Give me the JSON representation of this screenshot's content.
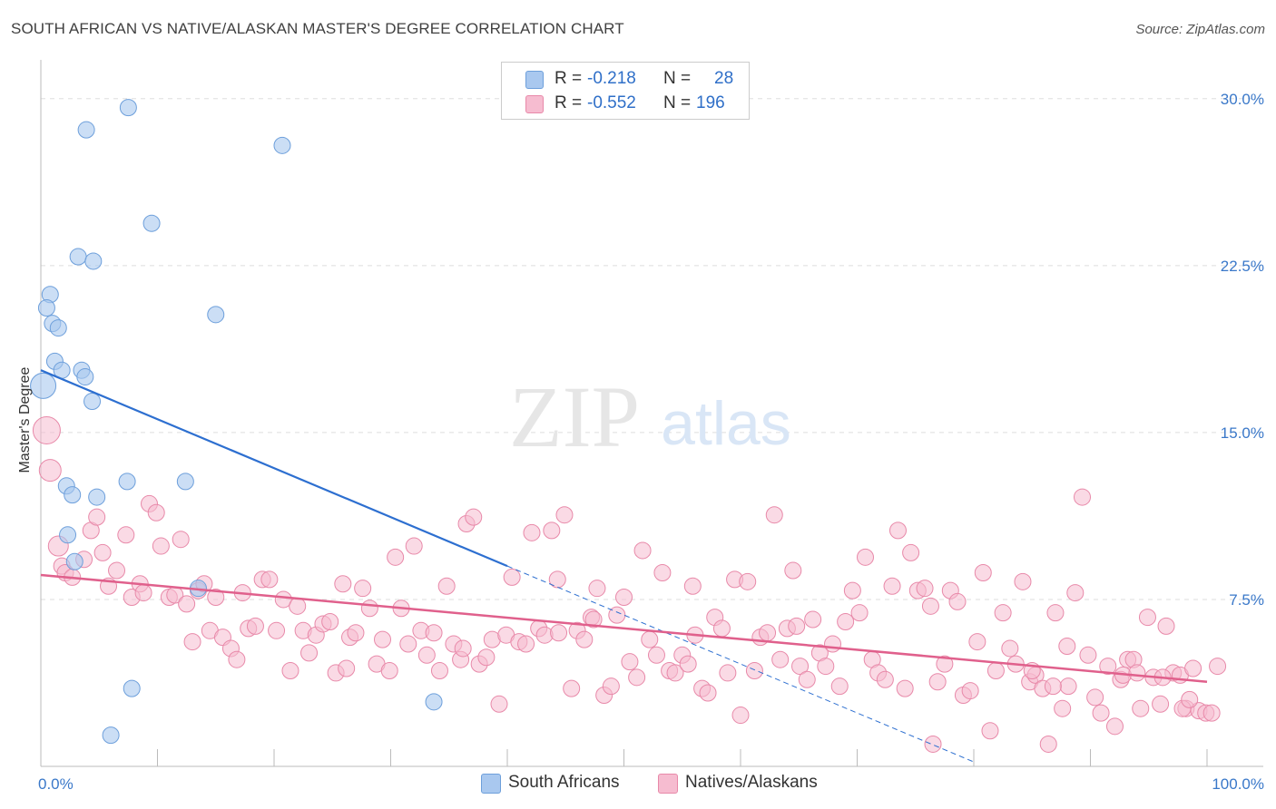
{
  "title": "SOUTH AFRICAN VS NATIVE/ALASKAN MASTER'S DEGREE CORRELATION CHART",
  "source": "Source: ZipAtlas.com",
  "watermark": {
    "zip": "ZIP",
    "atlas": "atlas"
  },
  "colors": {
    "blue_fill": "#a9c8ef",
    "blue_stroke": "#6d9fdb",
    "blue_line": "#2d6fd0",
    "pink_fill": "#f6bcd0",
    "pink_stroke": "#e889a9",
    "pink_line": "#e0608c",
    "grid": "#dddddd",
    "tick_text": "#3a78c9"
  },
  "legend": {
    "rows": [
      {
        "r_label": "R =",
        "r_value": "-0.218",
        "n_label": "N =",
        "n_value": "28"
      },
      {
        "r_label": "R =",
        "r_value": "-0.552",
        "n_label": "N =",
        "n_value": "196"
      }
    ]
  },
  "bottom_legend": {
    "items": [
      "South Africans",
      "Natives/Alaskans"
    ]
  },
  "chart_data": {
    "type": "scatter",
    "ylabel": "Master's Degree",
    "x_tick_labels": [
      "0.0%",
      "100.0%"
    ],
    "y_tick_labels": [
      "7.5%",
      "15.0%",
      "22.5%",
      "30.0%"
    ],
    "y_ticks": [
      7.5,
      15.0,
      22.5,
      30.0
    ],
    "xlim": [
      0,
      100
    ],
    "ylim": [
      0,
      31.5
    ],
    "grid": true,
    "series": [
      {
        "name": "South Africans",
        "trend": {
          "x0": 0,
          "y0": 17.8,
          "x1": 40,
          "y1": 9.0,
          "x_dash_end": 80,
          "y_dash_end": 0.2
        },
        "points": [
          [
            7.5,
            29.6,
            9
          ],
          [
            3.9,
            28.6,
            9
          ],
          [
            20.7,
            27.9,
            9
          ],
          [
            9.5,
            24.4,
            9
          ],
          [
            3.2,
            22.9,
            9
          ],
          [
            4.5,
            22.7,
            9
          ],
          [
            0.8,
            21.2,
            9
          ],
          [
            0.5,
            20.6,
            9
          ],
          [
            15.0,
            20.3,
            9
          ],
          [
            1.0,
            19.9,
            9
          ],
          [
            1.5,
            19.7,
            9
          ],
          [
            1.2,
            18.2,
            9
          ],
          [
            1.8,
            17.8,
            9
          ],
          [
            3.5,
            17.8,
            9
          ],
          [
            3.8,
            17.5,
            9
          ],
          [
            0.2,
            17.1,
            14
          ],
          [
            4.4,
            16.4,
            9
          ],
          [
            7.4,
            12.8,
            9
          ],
          [
            12.4,
            12.8,
            9
          ],
          [
            2.2,
            12.6,
            9
          ],
          [
            2.7,
            12.2,
            9
          ],
          [
            4.8,
            12.1,
            9
          ],
          [
            2.3,
            10.4,
            9
          ],
          [
            2.9,
            9.2,
            9
          ],
          [
            13.5,
            8.0,
            9
          ],
          [
            7.8,
            3.5,
            9
          ],
          [
            33.7,
            2.9,
            9
          ],
          [
            6.0,
            1.4,
            9
          ]
        ]
      },
      {
        "name": "Natives/Alaskans",
        "trend": {
          "x0": 0,
          "y0": 8.6,
          "x1": 100,
          "y1": 3.8
        },
        "points": [
          [
            0.5,
            15.1,
            15
          ],
          [
            0.8,
            13.3,
            12
          ],
          [
            1.5,
            9.9,
            11
          ],
          [
            1.8,
            9.0,
            9
          ],
          [
            2.1,
            8.7,
            9
          ],
          [
            2.7,
            8.5,
            9
          ],
          [
            3.7,
            9.3,
            9
          ],
          [
            4.3,
            10.6,
            9
          ],
          [
            4.8,
            11.2,
            9
          ],
          [
            5.3,
            9.6,
            9
          ],
          [
            5.8,
            8.1,
            9
          ],
          [
            6.5,
            8.8,
            9
          ],
          [
            7.3,
            10.4,
            9
          ],
          [
            7.8,
            7.6,
            9
          ],
          [
            8.5,
            8.2,
            9
          ],
          [
            9.3,
            11.8,
            9
          ],
          [
            9.9,
            11.4,
            9
          ],
          [
            10.3,
            9.9,
            9
          ],
          [
            11.0,
            7.6,
            9
          ],
          [
            11.5,
            7.7,
            9
          ],
          [
            12.0,
            10.2,
            9
          ],
          [
            12.5,
            7.3,
            9
          ],
          [
            13.0,
            5.6,
            9
          ],
          [
            13.5,
            7.9,
            9
          ],
          [
            14.0,
            8.2,
            9
          ],
          [
            14.5,
            6.1,
            9
          ],
          [
            15.0,
            7.6,
            9
          ],
          [
            15.6,
            5.8,
            9
          ],
          [
            16.3,
            5.3,
            9
          ],
          [
            16.8,
            4.8,
            9
          ],
          [
            17.3,
            7.8,
            9
          ],
          [
            17.8,
            6.2,
            9
          ],
          [
            18.4,
            6.3,
            9
          ],
          [
            19.0,
            8.4,
            9
          ],
          [
            19.6,
            8.4,
            9
          ],
          [
            20.2,
            6.1,
            9
          ],
          [
            20.8,
            7.5,
            9
          ],
          [
            21.4,
            4.3,
            9
          ],
          [
            22.0,
            7.2,
            9
          ],
          [
            22.5,
            6.1,
            9
          ],
          [
            23.0,
            5.1,
            9
          ],
          [
            23.6,
            5.9,
            9
          ],
          [
            24.2,
            6.4,
            9
          ],
          [
            24.8,
            6.5,
            9
          ],
          [
            25.3,
            4.2,
            9
          ],
          [
            25.9,
            8.2,
            9
          ],
          [
            26.5,
            5.8,
            9
          ],
          [
            27.0,
            6.0,
            9
          ],
          [
            27.6,
            8.0,
            9
          ],
          [
            28.2,
            7.1,
            9
          ],
          [
            28.8,
            4.6,
            9
          ],
          [
            29.3,
            5.7,
            9
          ],
          [
            29.9,
            4.3,
            9
          ],
          [
            30.4,
            9.4,
            9
          ],
          [
            30.9,
            7.1,
            9
          ],
          [
            31.5,
            5.5,
            9
          ],
          [
            32.0,
            9.9,
            9
          ],
          [
            32.6,
            6.1,
            9
          ],
          [
            33.1,
            5.0,
            9
          ],
          [
            33.7,
            6.0,
            9
          ],
          [
            34.2,
            4.3,
            9
          ],
          [
            34.8,
            8.1,
            9
          ],
          [
            35.4,
            5.5,
            9
          ],
          [
            36.0,
            4.8,
            9
          ],
          [
            36.5,
            10.9,
            9
          ],
          [
            37.1,
            11.2,
            9
          ],
          [
            37.6,
            4.6,
            9
          ],
          [
            38.2,
            4.9,
            9
          ],
          [
            38.7,
            5.7,
            9
          ],
          [
            39.3,
            2.8,
            9
          ],
          [
            39.9,
            5.9,
            9
          ],
          [
            40.4,
            8.5,
            9
          ],
          [
            41.0,
            5.6,
            9
          ],
          [
            41.6,
            5.5,
            9
          ],
          [
            42.1,
            10.5,
            9
          ],
          [
            42.7,
            6.2,
            9
          ],
          [
            43.2,
            5.9,
            9
          ],
          [
            43.8,
            10.6,
            9
          ],
          [
            44.4,
            6.0,
            9
          ],
          [
            44.9,
            11.3,
            9
          ],
          [
            45.5,
            3.5,
            9
          ],
          [
            46.0,
            6.1,
            9
          ],
          [
            46.6,
            5.7,
            9
          ],
          [
            47.2,
            6.7,
            9
          ],
          [
            47.7,
            8.0,
            9
          ],
          [
            48.3,
            3.2,
            9
          ],
          [
            48.9,
            3.6,
            9
          ],
          [
            49.4,
            6.8,
            9
          ],
          [
            50.0,
            7.6,
            9
          ],
          [
            50.5,
            4.7,
            9
          ],
          [
            51.1,
            4.0,
            9
          ],
          [
            51.6,
            9.7,
            9
          ],
          [
            52.2,
            5.7,
            9
          ],
          [
            52.8,
            5.0,
            9
          ],
          [
            53.3,
            8.7,
            9
          ],
          [
            53.9,
            4.3,
            9
          ],
          [
            54.4,
            4.2,
            9
          ],
          [
            55.0,
            5.0,
            9
          ],
          [
            55.5,
            4.6,
            9
          ],
          [
            56.1,
            5.9,
            9
          ],
          [
            56.7,
            3.5,
            9
          ],
          [
            57.2,
            3.3,
            9
          ],
          [
            57.8,
            6.7,
            9
          ],
          [
            58.4,
            6.2,
            9
          ],
          [
            58.9,
            4.2,
            9
          ],
          [
            59.5,
            8.4,
            9
          ],
          [
            60.0,
            2.3,
            9
          ],
          [
            60.6,
            8.3,
            9
          ],
          [
            61.2,
            4.3,
            9
          ],
          [
            61.7,
            5.8,
            9
          ],
          [
            62.3,
            6.0,
            9
          ],
          [
            62.9,
            11.3,
            9
          ],
          [
            63.4,
            4.8,
            9
          ],
          [
            64.0,
            6.2,
            9
          ],
          [
            64.5,
            8.8,
            9
          ],
          [
            65.1,
            4.5,
            9
          ],
          [
            65.7,
            3.9,
            9
          ],
          [
            66.2,
            6.6,
            9
          ],
          [
            66.8,
            5.1,
            9
          ],
          [
            67.3,
            4.5,
            9
          ],
          [
            67.9,
            5.5,
            9
          ],
          [
            68.5,
            3.6,
            9
          ],
          [
            69.0,
            6.5,
            9
          ],
          [
            69.6,
            7.9,
            9
          ],
          [
            70.2,
            6.9,
            9
          ],
          [
            70.7,
            9.4,
            9
          ],
          [
            71.3,
            4.8,
            9
          ],
          [
            71.8,
            4.2,
            9
          ],
          [
            72.4,
            3.9,
            9
          ],
          [
            73.0,
            8.1,
            9
          ],
          [
            73.5,
            10.6,
            9
          ],
          [
            74.1,
            3.5,
            9
          ],
          [
            74.6,
            9.6,
            9
          ],
          [
            75.2,
            7.9,
            9
          ],
          [
            75.8,
            8.0,
            9
          ],
          [
            76.3,
            7.2,
            9
          ],
          [
            76.9,
            3.8,
            9
          ],
          [
            77.5,
            4.6,
            9
          ],
          [
            78.0,
            7.9,
            9
          ],
          [
            78.6,
            7.4,
            9
          ],
          [
            79.1,
            3.2,
            9
          ],
          [
            79.7,
            3.4,
            9
          ],
          [
            80.3,
            5.6,
            9
          ],
          [
            80.8,
            8.7,
            9
          ],
          [
            81.4,
            1.6,
            9
          ],
          [
            81.9,
            4.3,
            9
          ],
          [
            82.5,
            6.9,
            9
          ],
          [
            83.1,
            5.3,
            9
          ],
          [
            83.6,
            4.6,
            9
          ],
          [
            84.2,
            8.3,
            9
          ],
          [
            84.8,
            3.8,
            9
          ],
          [
            85.3,
            4.1,
            9
          ],
          [
            85.9,
            3.5,
            9
          ],
          [
            86.4,
            1.0,
            9
          ],
          [
            87.0,
            6.9,
            9
          ],
          [
            87.6,
            2.6,
            9
          ],
          [
            88.1,
            3.6,
            9
          ],
          [
            88.7,
            7.8,
            9
          ],
          [
            89.3,
            12.1,
            9
          ],
          [
            89.8,
            5.0,
            9
          ],
          [
            90.4,
            3.1,
            9
          ],
          [
            90.9,
            2.4,
            9
          ],
          [
            91.5,
            4.5,
            9
          ],
          [
            92.1,
            1.8,
            9
          ],
          [
            92.6,
            3.9,
            9
          ],
          [
            93.2,
            4.8,
            9
          ],
          [
            93.7,
            4.8,
            9
          ],
          [
            94.3,
            2.6,
            9
          ],
          [
            94.9,
            6.7,
            9
          ],
          [
            95.4,
            4.0,
            9
          ],
          [
            96.0,
            2.8,
            9
          ],
          [
            96.5,
            6.3,
            9
          ],
          [
            97.1,
            4.2,
            9
          ],
          [
            97.7,
            4.1,
            9
          ],
          [
            98.2,
            2.6,
            9
          ],
          [
            98.8,
            4.4,
            9
          ],
          [
            99.3,
            2.5,
            9
          ],
          [
            99.9,
            2.4,
            9
          ],
          [
            100.4,
            2.4,
            9
          ],
          [
            100.9,
            4.5,
            9
          ],
          [
            97.9,
            2.6,
            9
          ],
          [
            85.0,
            4.3,
            9
          ],
          [
            92.8,
            4.1,
            9
          ],
          [
            88.0,
            5.4,
            9
          ],
          [
            96.2,
            4.0,
            9
          ],
          [
            98.5,
            3.0,
            9
          ],
          [
            94.0,
            4.2,
            9
          ],
          [
            86.8,
            3.6,
            9
          ],
          [
            76.5,
            1.0,
            9
          ],
          [
            64.8,
            6.3,
            9
          ],
          [
            44.3,
            8.4,
            9
          ],
          [
            8.8,
            7.8,
            9
          ],
          [
            36.2,
            5.3,
            9
          ],
          [
            26.2,
            4.4,
            9
          ],
          [
            47.4,
            6.6,
            9
          ],
          [
            55.9,
            8.1,
            9
          ]
        ]
      }
    ]
  }
}
